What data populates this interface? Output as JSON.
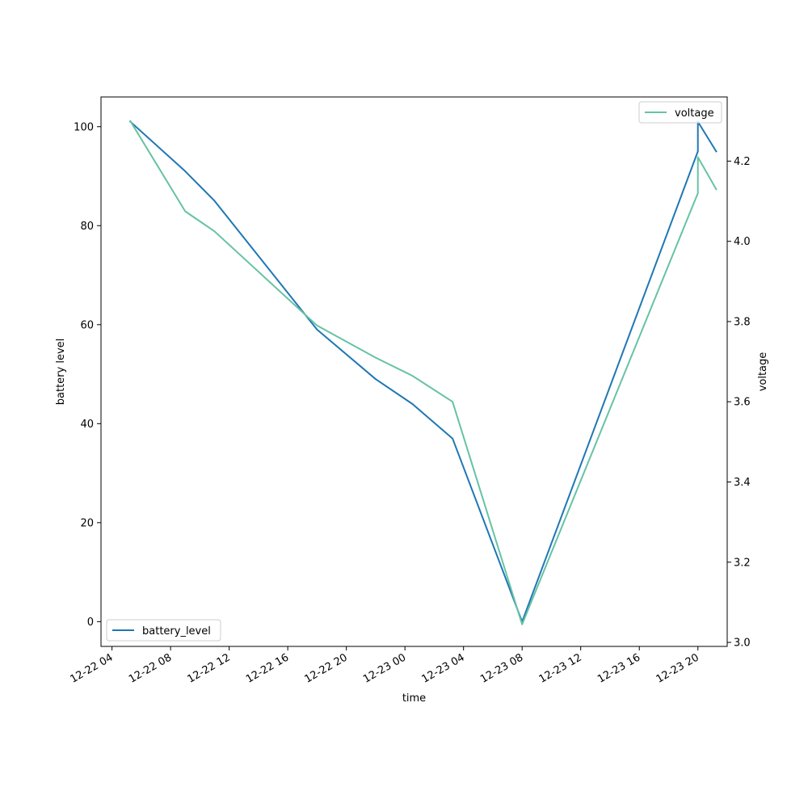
{
  "chart_data": {
    "type": "line",
    "xlabel": "time",
    "ylabel_left": "battery level",
    "ylabel_right": "voltage",
    "x_ticks": [
      "12-22 04",
      "12-22 08",
      "12-22 12",
      "12-22 16",
      "12-22 20",
      "12-23 00",
      "12-23 04",
      "12-23 08",
      "12-23 12",
      "12-23 16",
      "12-23 20"
    ],
    "x_range": [
      "2023-12-22 03:15",
      "2023-12-23 22:00"
    ],
    "ylim_left": [
      -5,
      106
    ],
    "ylim_right": [
      2.99,
      4.36
    ],
    "yticks_left": [
      0,
      20,
      40,
      60,
      80,
      100
    ],
    "yticks_right": [
      3.0,
      3.2,
      3.4,
      3.6,
      3.8,
      4.0,
      4.2
    ],
    "legend_left": "lower left",
    "legend_right": "upper right",
    "series": [
      {
        "name": "battery_level",
        "axis": "left",
        "color": "#1f77b4",
        "points": [
          {
            "x": "2023-12-22 05:15",
            "y": 101
          },
          {
            "x": "2023-12-22 09:00",
            "y": 91
          },
          {
            "x": "2023-12-22 11:00",
            "y": 85
          },
          {
            "x": "2023-12-22 18:00",
            "y": 59
          },
          {
            "x": "2023-12-22 22:00",
            "y": 49
          },
          {
            "x": "2023-12-23 00:30",
            "y": 44
          },
          {
            "x": "2023-12-23 03:15",
            "y": 37
          },
          {
            "x": "2023-12-23 08:00",
            "y": 0
          },
          {
            "x": "2023-12-23 20:00",
            "y": 95
          },
          {
            "x": "2023-12-23 20:00",
            "y": 101
          },
          {
            "x": "2023-12-23 21:15",
            "y": 95
          }
        ]
      },
      {
        "name": "voltage",
        "axis": "right",
        "color": "#66c2a5",
        "points": [
          {
            "x": "2023-12-22 05:15",
            "y": 4.3
          },
          {
            "x": "2023-12-22 09:00",
            "y": 4.075
          },
          {
            "x": "2023-12-22 11:00",
            "y": 4.025
          },
          {
            "x": "2023-12-22 18:00",
            "y": 3.79
          },
          {
            "x": "2023-12-22 22:00",
            "y": 3.71
          },
          {
            "x": "2023-12-23 00:30",
            "y": 3.665
          },
          {
            "x": "2023-12-23 03:15",
            "y": 3.6
          },
          {
            "x": "2023-12-23 08:00",
            "y": 3.045
          },
          {
            "x": "2023-12-23 20:00",
            "y": 4.12
          },
          {
            "x": "2023-12-23 20:00",
            "y": 4.21
          },
          {
            "x": "2023-12-23 21:15",
            "y": 4.13
          }
        ]
      }
    ]
  }
}
